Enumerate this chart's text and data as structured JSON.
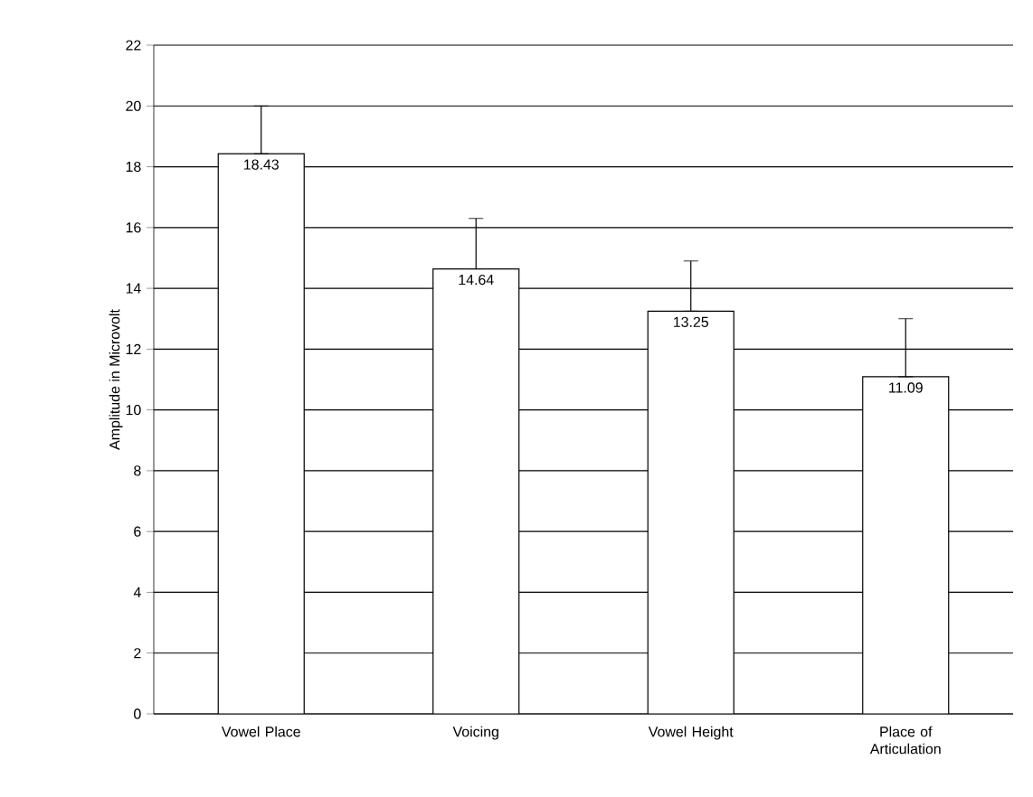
{
  "chart_data": {
    "type": "bar",
    "ylabel": "Amplitude in Microvolt",
    "categories": [
      "Vowel Place",
      "Voicing",
      "Vowel Height",
      "Place of Articulation"
    ],
    "values": [
      18.43,
      14.64,
      13.25,
      11.09
    ],
    "errors": [
      [
        18.43,
        20.0
      ],
      [
        14.64,
        16.3
      ],
      [
        13.25,
        14.9
      ],
      [
        11.09,
        13.0
      ]
    ],
    "color": "#ffffff",
    "data_labels": true,
    "grid": "y",
    "ylim": [
      0,
      22
    ],
    "yticks": [
      0,
      2,
      4,
      6,
      8,
      10,
      12,
      14,
      16,
      18,
      20,
      22
    ]
  }
}
